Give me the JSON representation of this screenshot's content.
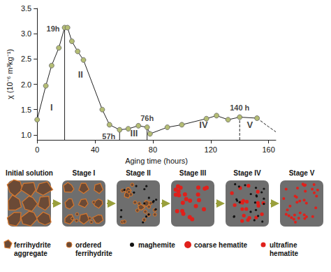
{
  "chart_data": {
    "type": "line",
    "x": [
      0,
      6,
      10,
      15,
      19,
      21,
      24,
      28,
      32,
      45,
      50,
      57,
      63,
      70,
      76,
      78,
      90,
      100,
      117,
      124,
      132,
      140,
      152
    ],
    "values": [
      1.3,
      1.97,
      2.37,
      2.72,
      3.12,
      3.12,
      2.85,
      2.65,
      2.48,
      1.5,
      1.2,
      1.1,
      1.12,
      1.18,
      1.15,
      1.02,
      1.15,
      1.2,
      1.32,
      1.38,
      1.3,
      1.35,
      1.33
    ],
    "color": "#b4bd74",
    "marker": "circle",
    "line_style": "solid",
    "xlim": [
      0,
      165
    ],
    "ylim": [
      0.9,
      3.5
    ],
    "xticks": [
      0,
      40,
      80,
      120,
      160
    ],
    "yticks": [
      {
        "value": 1,
        "label": "1.0"
      },
      {
        "value": 1.5,
        "label": "1.5"
      },
      {
        "value": 2,
        "label": "2.0"
      },
      {
        "value": 2.5,
        "label": "2.5"
      },
      {
        "value": 3,
        "label": "3.0"
      },
      {
        "value": 3.5,
        "label": "3.5"
      }
    ],
    "x_label": "Aging time (hours)",
    "y_label": "χ (10⁻⁶ m³kg⁻¹)",
    "grid": false,
    "extension": {
      "x": [
        152,
        160,
        165
      ],
      "values": [
        1.33,
        1.16,
        1.06
      ],
      "line_style": "dashed"
    },
    "markers": [
      {
        "x": 19,
        "y": 3.12,
        "label": "19h",
        "line_style": "solid"
      },
      {
        "x": 57,
        "y": 1.1,
        "label": "57h",
        "line_style": "solid"
      },
      {
        "x": 76,
        "y": 1.15,
        "label": "76h",
        "line_style": "solid"
      },
      {
        "x": 140,
        "y": 1.35,
        "label": "140 h",
        "line_style": "dashed"
      }
    ],
    "stages": [
      {
        "label": "I",
        "x": 10,
        "y": 1.55
      },
      {
        "label": "II",
        "x": 30,
        "y": 2.2
      },
      {
        "label": "III",
        "x": 67,
        "y": 1.03
      },
      {
        "label": "IV",
        "x": 115,
        "y": 1.2
      },
      {
        "label": "V",
        "x": 147,
        "y": 1.2
      }
    ]
  },
  "diagram": {
    "panels": [
      "Initial solution",
      "Stage I",
      "Stage II",
      "Stage III",
      "Stage IV",
      "Stage V"
    ],
    "legend": [
      {
        "lines": [
          "ferrihydrite",
          "aggregate"
        ]
      },
      {
        "lines": [
          "ordered",
          "ferrihydrite"
        ]
      },
      {
        "lines": [
          "maghemite"
        ]
      },
      {
        "lines": [
          "coarse hematite"
        ]
      },
      {
        "lines": [
          "ultrafine",
          "hematite"
        ]
      }
    ]
  }
}
